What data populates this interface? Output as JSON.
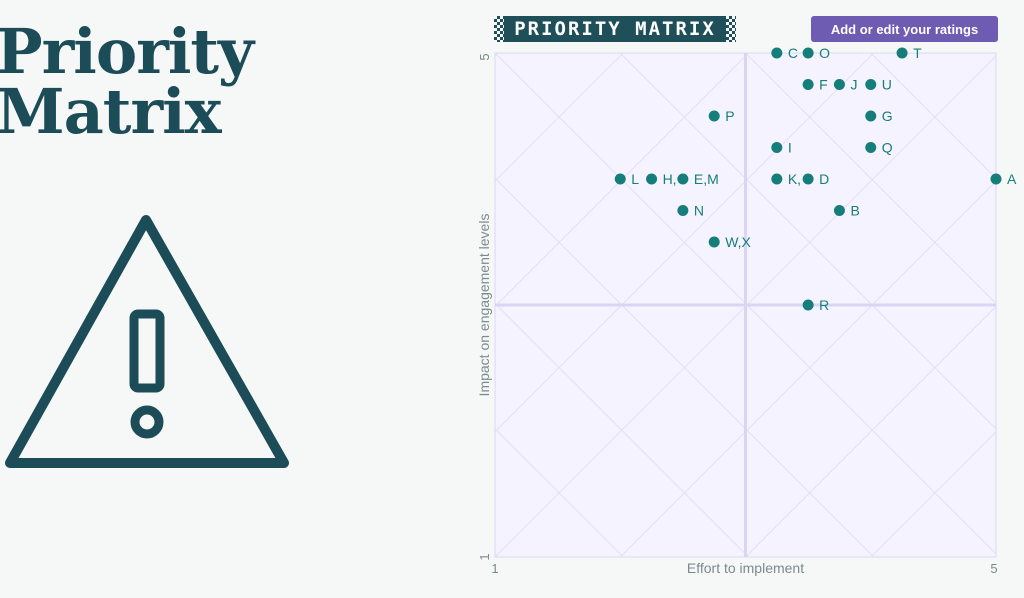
{
  "title": "Priority\nMatrix",
  "brand": {
    "label": "PRIORITY MATRIX"
  },
  "button": {
    "label": "Add or edit your ratings"
  },
  "icons": {
    "warning": "warning-triangle-icon"
  },
  "colors": {
    "point": "#167e7a",
    "title": "#1c4c57",
    "button": "#6e5bb2",
    "plot_bg": "#f5f3ff",
    "grid": "#e3dff7"
  },
  "chart_data": {
    "type": "scatter",
    "xlabel": "Effort to implement",
    "ylabel": "Impact on engagement levels",
    "xlim": [
      1,
      5
    ],
    "ylim": [
      1,
      5
    ],
    "x_ticks": [
      "1",
      "5"
    ],
    "y_ticks": [
      "1",
      "5"
    ],
    "points": [
      {
        "x": 2.0,
        "y": 4.0,
        "label": "L"
      },
      {
        "x": 2.25,
        "y": 4.0,
        "label": "H,"
      },
      {
        "x": 2.5,
        "y": 4.0,
        "label": "E,M"
      },
      {
        "x": 2.5,
        "y": 3.75,
        "label": "N"
      },
      {
        "x": 2.75,
        "y": 4.5,
        "label": "P"
      },
      {
        "x": 2.75,
        "y": 3.5,
        "label": "W,X"
      },
      {
        "x": 3.25,
        "y": 5.0,
        "label": "C"
      },
      {
        "x": 3.5,
        "y": 5.0,
        "label": "O"
      },
      {
        "x": 3.5,
        "y": 4.75,
        "label": "F"
      },
      {
        "x": 3.75,
        "y": 4.75,
        "label": "J"
      },
      {
        "x": 4.0,
        "y": 4.75,
        "label": "U"
      },
      {
        "x": 4.25,
        "y": 5.0,
        "label": "T"
      },
      {
        "x": 4.0,
        "y": 4.5,
        "label": "G"
      },
      {
        "x": 3.25,
        "y": 4.25,
        "label": "I"
      },
      {
        "x": 4.0,
        "y": 4.25,
        "label": "Q"
      },
      {
        "x": 3.25,
        "y": 4.0,
        "label": "K,"
      },
      {
        "x": 3.5,
        "y": 4.0,
        "label": "D"
      },
      {
        "x": 5.0,
        "y": 4.0,
        "label": "A"
      },
      {
        "x": 3.75,
        "y": 3.75,
        "label": "B"
      },
      {
        "x": 3.5,
        "y": 3.0,
        "label": "R"
      }
    ]
  }
}
